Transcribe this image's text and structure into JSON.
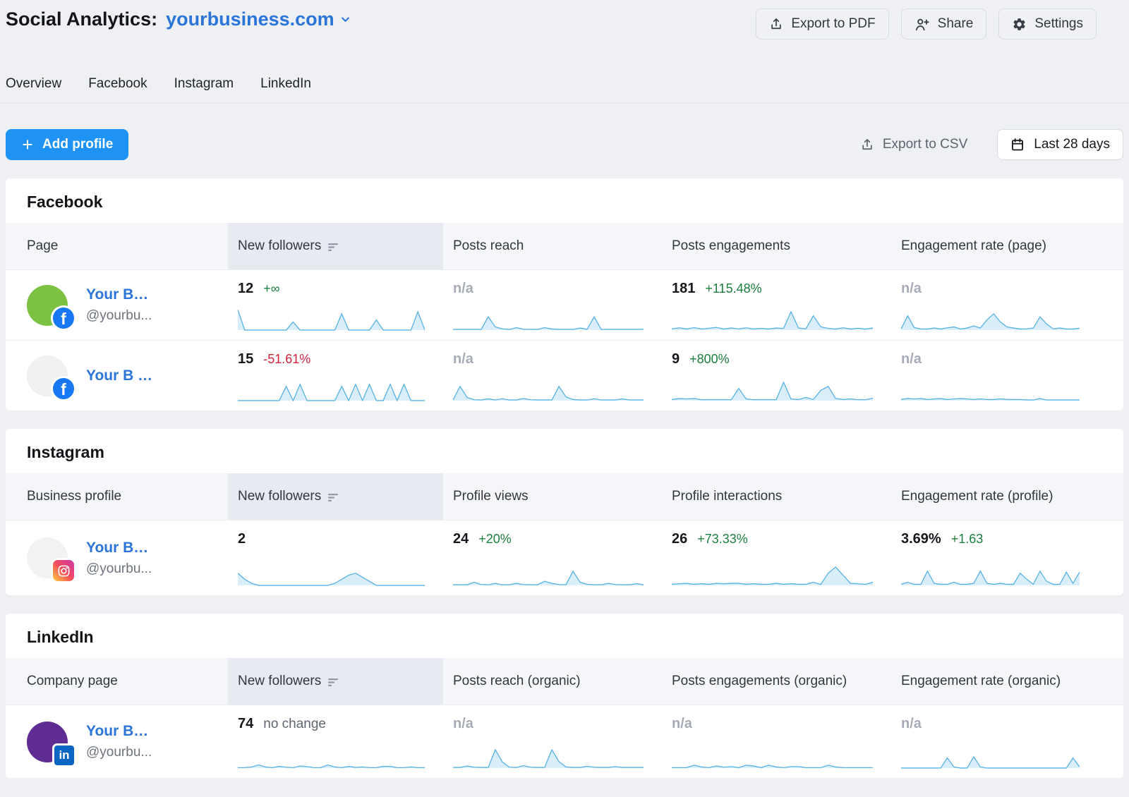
{
  "header": {
    "title": "Social Analytics:",
    "project": "yourbusiness.com",
    "buttons": {
      "export_pdf": "Export to PDF",
      "share": "Share",
      "settings": "Settings"
    }
  },
  "tabs": [
    "Overview",
    "Facebook",
    "Instagram",
    "LinkedIn"
  ],
  "toolbar": {
    "add_profile": "Add profile",
    "export_csv": "Export to CSV",
    "date_range": "Last 28 days"
  },
  "colors": {
    "accent_blue": "#1f93f4",
    "link_blue": "#2b74d8",
    "positive_green": "#1b7e3d",
    "negative_red": "#d2233c",
    "na_gray": "#a6abb5",
    "spark_stroke": "#56b2e4",
    "spark_fill": "#d9eefa",
    "facebook_brand": "#1877f2",
    "linkedin_brand": "#0a66c2"
  },
  "sections": [
    {
      "id": "facebook",
      "title": "Facebook",
      "columns": [
        "Page",
        "New followers",
        "Posts reach",
        "Posts engagements",
        "Engagement rate (page)"
      ],
      "sorted_column": 1,
      "rows": [
        {
          "name": "Your B…",
          "handle": "@yourbu...",
          "avatar_color": "#7cc142",
          "network": "facebook",
          "metrics": [
            {
              "value": "12",
              "delta": "+∞",
              "delta_type": "up",
              "spark": [
                10,
                0,
                0,
                0,
                0,
                0,
                0,
                0,
                4,
                0,
                0,
                0,
                0,
                0,
                0,
                8,
                0,
                0,
                0,
                0,
                5,
                0,
                0,
                0,
                0,
                0,
                9,
                0
              ]
            },
            {
              "value": "n/a",
              "delta": "",
              "delta_type": "na",
              "spark": [
                0.3,
                0.3,
                0.3,
                0.3,
                0.3,
                6.5,
                1.5,
                0.6,
                0.3,
                1.2,
                0.4,
                0.3,
                0.3,
                1.2,
                0.5,
                0.3,
                0.3,
                0.3,
                1,
                0.4,
                6.5,
                0.3,
                0.3,
                0.3,
                0.3,
                0.3,
                0.3,
                0.4
              ]
            },
            {
              "value": "181",
              "delta": "+115.48%",
              "delta_type": "up",
              "spark": [
                0.6,
                1.1,
                0.5,
                1.2,
                0.5,
                0.9,
                1.3,
                0.5,
                1,
                0.6,
                1.1,
                0.5,
                0.8,
                0.5,
                1,
                0.8,
                9,
                1,
                0.6,
                7,
                1.6,
                0.8,
                0.5,
                1.1,
                0.5,
                0.9,
                0.5,
                1
              ]
            },
            {
              "value": "n/a",
              "delta": "",
              "delta_type": "na",
              "spark": [
                0.5,
                7,
                1.2,
                0.5,
                0.5,
                1,
                0.5,
                1.1,
                1.5,
                0.5,
                1,
                2,
                1,
                5,
                8,
                4,
                1.5,
                1,
                0.5,
                0.6,
                1,
                6.5,
                3,
                0.6,
                1,
                0.5,
                0.5,
                0.9
              ]
            }
          ]
        },
        {
          "name": "Your B …",
          "handle": "",
          "avatar_color": "#f0f0f3",
          "network": "facebook",
          "metrics": [
            {
              "value": "15",
              "delta": "-51.61%",
              "delta_type": "down",
              "spark": [
                0,
                0,
                0,
                0,
                0,
                0,
                0,
                7,
                0,
                8,
                0,
                0,
                0,
                0,
                0,
                7,
                0,
                8,
                0,
                8,
                0,
                0,
                8,
                0,
                8,
                0,
                0,
                0
              ]
            },
            {
              "value": "n/a",
              "delta": "",
              "delta_type": "na",
              "spark": [
                0.3,
                7,
                1.5,
                0.4,
                0.3,
                0.8,
                0.3,
                0.9,
                0.3,
                0.3,
                1,
                0.4,
                0.3,
                0.3,
                0.3,
                7,
                1.8,
                0.5,
                0.3,
                0.3,
                0.9,
                0.3,
                0.3,
                0.3,
                0.8,
                0.3,
                0.3,
                0.3
              ]
            },
            {
              "value": "9",
              "delta": "+800%",
              "delta_type": "up",
              "spark": [
                0.5,
                1,
                0.8,
                1,
                0.4,
                0.4,
                0.4,
                0.4,
                0.4,
                6,
                0.8,
                0.4,
                0.4,
                0.4,
                0.4,
                9,
                0.8,
                0.5,
                1.5,
                0.5,
                5,
                7,
                1,
                0.5,
                0.8,
                0.4,
                0.4,
                1.2
              ]
            },
            {
              "value": "n/a",
              "delta": "",
              "delta_type": "na",
              "spark": [
                0.5,
                1,
                0.8,
                1,
                0.5,
                0.8,
                1,
                0.5,
                0.8,
                1,
                0.8,
                0.5,
                0.8,
                0.5,
                0.5,
                0.8,
                0.5,
                0.5,
                0.5,
                0.3,
                0.3,
                1,
                0.3,
                0.3,
                0.3,
                0.3,
                0.3,
                0.3
              ]
            }
          ]
        }
      ]
    },
    {
      "id": "instagram",
      "title": "Instagram",
      "columns": [
        "Business profile",
        "New followers",
        "Profile views",
        "Profile interactions",
        "Engagement rate (profile)"
      ],
      "sorted_column": 1,
      "rows": [
        {
          "name": "Your B…",
          "handle": "@yourbu...",
          "avatar_color": "#f2f2f5",
          "network": "instagram",
          "metrics": [
            {
              "value": "2",
              "delta": "",
              "delta_type": "none",
              "spark": [
                6,
                3,
                1,
                0,
                0,
                0,
                0,
                0,
                0,
                0,
                0,
                0,
                0,
                0,
                1,
                3,
                5,
                6,
                4,
                2,
                0,
                0,
                0,
                0,
                0,
                0,
                0,
                0
              ]
            },
            {
              "value": "24",
              "delta": "+20%",
              "delta_type": "up",
              "spark": [
                0.3,
                0.3,
                0.3,
                1.5,
                0.4,
                0.3,
                1,
                0.3,
                0.3,
                1,
                0.4,
                0.3,
                0.3,
                2,
                1,
                0.4,
                0.3,
                7,
                1.5,
                0.5,
                0.3,
                0.3,
                1,
                0.4,
                0.3,
                0.3,
                0.8,
                0.3
              ]
            },
            {
              "value": "26",
              "delta": "+73.33%",
              "delta_type": "up",
              "spark": [
                0.5,
                0.8,
                1,
                0.5,
                0.8,
                0.5,
                1,
                0.8,
                1,
                1,
                0.5,
                0.8,
                0.5,
                0.5,
                1,
                0.5,
                0.8,
                0.5,
                0.5,
                1.5,
                0.5,
                6,
                9,
                5,
                1,
                0.8,
                0.5,
                1.5
              ]
            },
            {
              "value": "3.69%",
              "delta": "+1.63",
              "delta_type": "up",
              "spark": [
                0.5,
                1.5,
                0.5,
                0.5,
                7,
                1,
                0.5,
                0.5,
                1.5,
                0.5,
                0.5,
                1,
                7,
                1,
                0.5,
                1,
                0.5,
                0.5,
                6,
                3,
                0.5,
                7,
                2,
                0.5,
                0.5,
                6.5,
                1,
                6.5
              ]
            }
          ]
        }
      ]
    },
    {
      "id": "linkedin",
      "title": "LinkedIn",
      "columns": [
        "Company page",
        "New followers",
        "Posts reach (organic)",
        "Posts engagements (organic)",
        "Engagement rate (organic)"
      ],
      "sorted_column": 1,
      "rows": [
        {
          "name": "Your B…",
          "handle": "@yourbu...",
          "avatar_color": "#5f2c91",
          "network": "linkedin",
          "metrics": [
            {
              "value": "74",
              "delta": "no change",
              "delta_type": "neutral",
              "spark": [
                0.2,
                0.2,
                0.5,
                1.5,
                0.5,
                0.2,
                0.8,
                0.4,
                0.2,
                1,
                0.7,
                0.2,
                0.2,
                1.5,
                0.5,
                0.2,
                0.8,
                0.3,
                0.5,
                0.2,
                0.2,
                0.8,
                0.8,
                0.2,
                0.2,
                0.5,
                0.2,
                0.2
              ]
            },
            {
              "value": "n/a",
              "delta": "",
              "delta_type": "na",
              "spark": [
                0.3,
                0.3,
                1,
                0.4,
                0.3,
                0.3,
                9,
                3,
                0.4,
                0.3,
                1.2,
                0.4,
                0.3,
                0.3,
                9,
                3.2,
                0.5,
                0.3,
                0.3,
                0.9,
                0.4,
                0.3,
                0.3,
                0.7,
                0.3,
                0.3,
                0.3,
                0.3
              ]
            },
            {
              "value": "n/a",
              "delta": "",
              "delta_type": "na",
              "spark": [
                0.2,
                0.2,
                0.2,
                1.4,
                0.5,
                0.2,
                1,
                0.4,
                0.7,
                0.2,
                1.4,
                1,
                0.2,
                1.4,
                0.5,
                0.2,
                0.7,
                0.7,
                0.2,
                0.2,
                0.2,
                1.4,
                0.5,
                0.2,
                0.2,
                0.2,
                0.2,
                0.2
              ]
            },
            {
              "value": "n/a",
              "delta": "",
              "delta_type": "na",
              "spark": [
                0,
                0,
                0,
                0,
                0,
                0,
                0,
                5,
                0.5,
                0,
                0,
                5.5,
                0.5,
                0,
                0,
                0,
                0,
                0,
                0,
                0,
                0,
                0,
                0,
                0,
                0,
                0,
                5,
                0.5
              ]
            }
          ]
        }
      ]
    }
  ]
}
